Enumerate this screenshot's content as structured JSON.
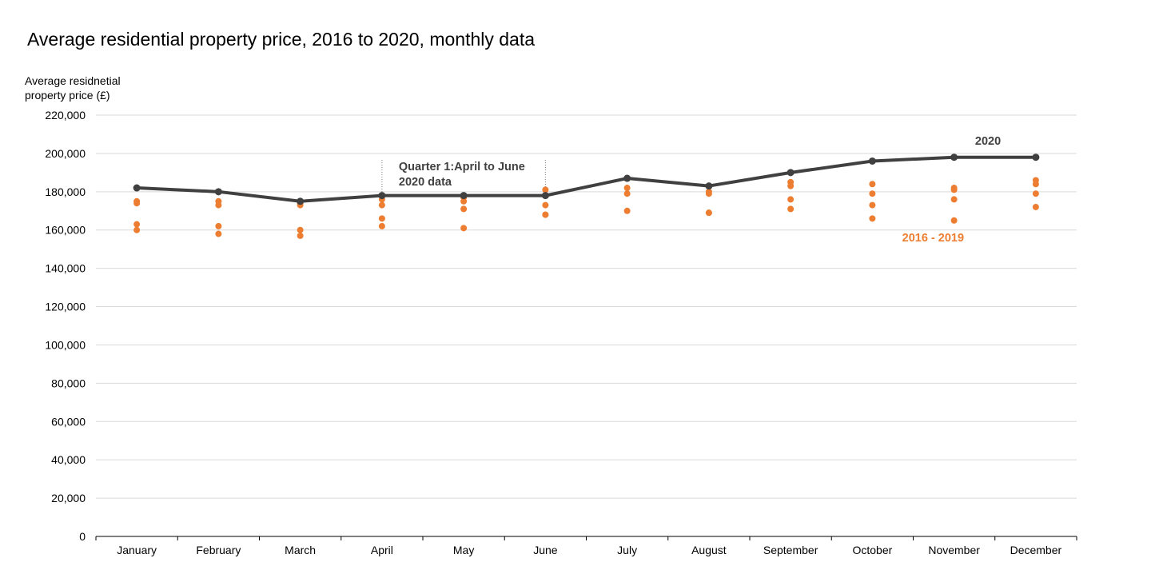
{
  "chart_data": {
    "type": "line",
    "title": "Average residential property price, 2016 to 2020, monthly data",
    "ylabel_lines": [
      "Average residnetial",
      "property price (£)"
    ],
    "xlabel": "",
    "categories": [
      "January",
      "February",
      "March",
      "April",
      "May",
      "June",
      "July",
      "August",
      "September",
      "October",
      "November",
      "December"
    ],
    "ylim": [
      0,
      220000
    ],
    "yticks": [
      0,
      20000,
      40000,
      60000,
      80000,
      100000,
      120000,
      140000,
      160000,
      180000,
      200000,
      220000
    ],
    "ytick_labels": [
      "0",
      "20,000",
      "40,000",
      "60,000",
      "80,000",
      "100,000",
      "120,000",
      "140,000",
      "160,000",
      "180,000",
      "200,000",
      "220,000"
    ],
    "grid": true,
    "series": [
      {
        "name": "2020",
        "kind": "line",
        "color": "#404040",
        "values": [
          182000,
          180000,
          175000,
          178000,
          178000,
          178000,
          187000,
          183000,
          190000,
          196000,
          198000,
          198000
        ]
      },
      {
        "name": "2016 - 2019",
        "kind": "scatter",
        "color": "#ED7D31",
        "points_by_month": [
          [
            175000,
            174000,
            163000,
            160000
          ],
          [
            175000,
            173000,
            162000,
            158000
          ],
          [
            174000,
            173000,
            160000,
            157000
          ],
          [
            176000,
            173000,
            166000,
            162000
          ],
          [
            177000,
            175000,
            171000,
            161000
          ],
          [
            181000,
            173000,
            168000,
            168000
          ],
          [
            187000,
            182000,
            179000,
            170000
          ],
          [
            180000,
            179000,
            169000,
            169000
          ],
          [
            185000,
            183000,
            176000,
            171000
          ],
          [
            184000,
            179000,
            173000,
            166000
          ],
          [
            182000,
            181000,
            176000,
            165000
          ],
          [
            186000,
            184000,
            179000,
            172000
          ]
        ]
      }
    ],
    "annotations": {
      "series_2020_label": "2020",
      "series_hist_label": "2016 - 2019",
      "quarter_line1": "Quarter 1:April to June",
      "quarter_line2": "2020 data"
    }
  }
}
